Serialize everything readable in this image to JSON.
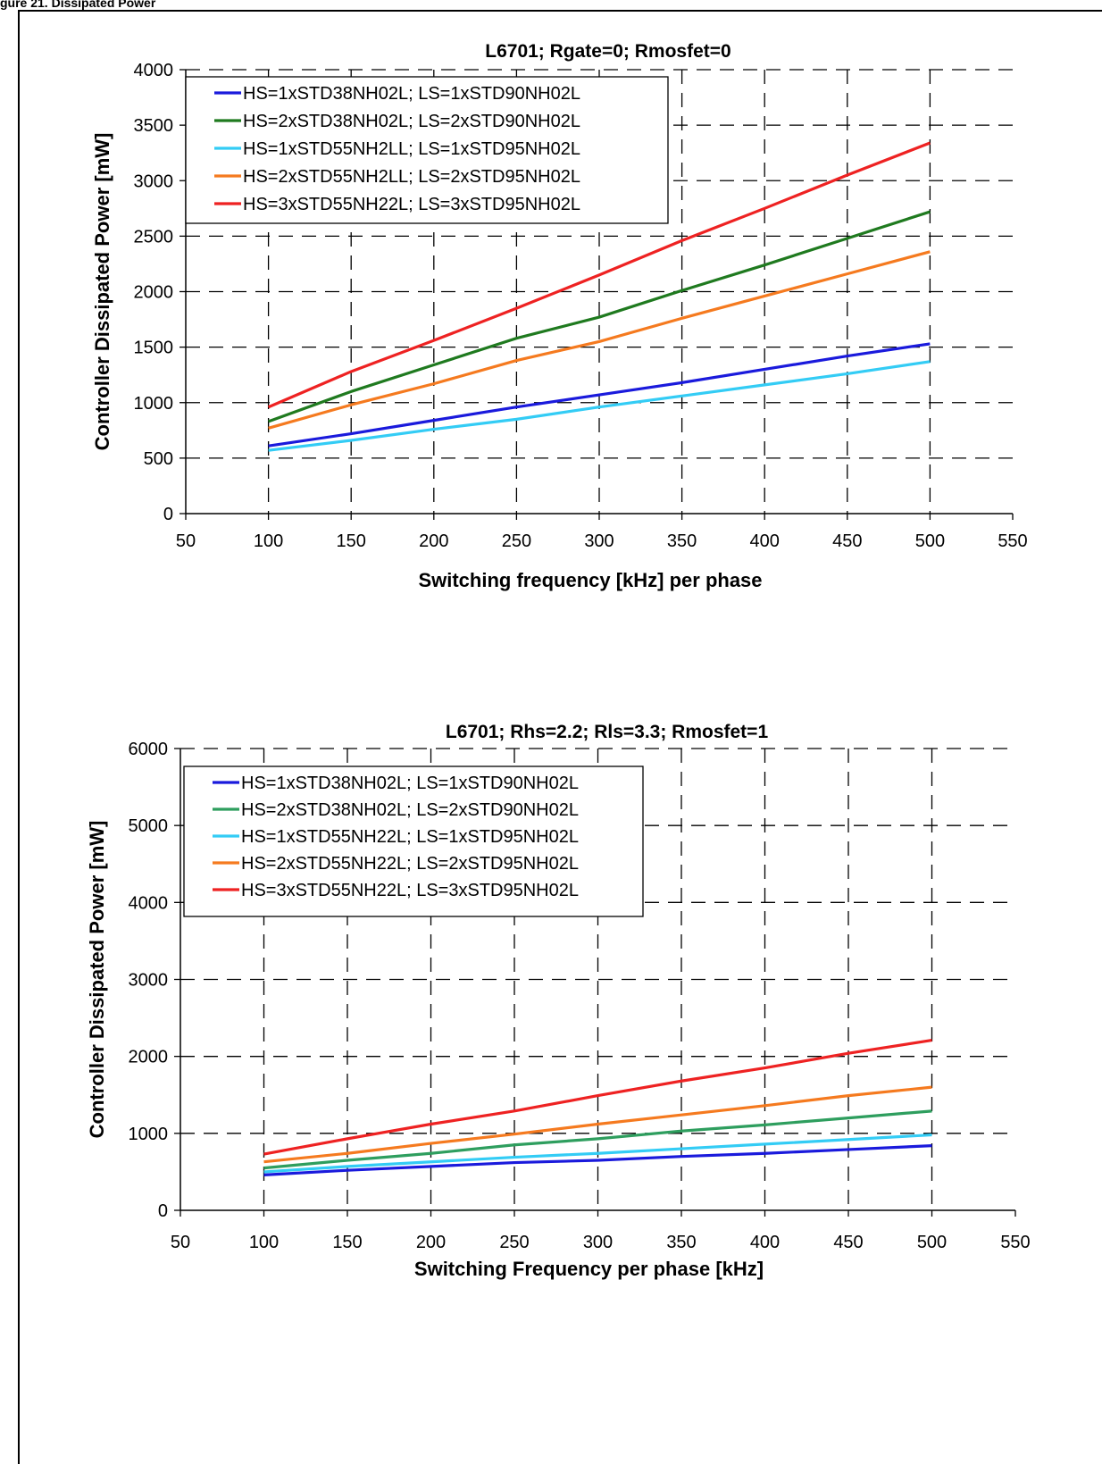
{
  "page": {
    "header_text": "gure 21.  Dissipated Power"
  },
  "chart_data": [
    {
      "type": "line",
      "title": "L6701; Rgate=0; Rmosfet=0",
      "xlabel": "Switching frequency [kHz] per phase",
      "ylabel": "Controller Dissipated Power [mW]",
      "xlim": [
        50,
        550
      ],
      "ylim": [
        0,
        4000
      ],
      "xticks": [
        "50",
        "100",
        "150",
        "200",
        "250",
        "300",
        "350",
        "400",
        "450",
        "500",
        "550"
      ],
      "yticks": [
        "0",
        "500",
        "1000",
        "1500",
        "2000",
        "2500",
        "3000",
        "3500",
        "4000"
      ],
      "grid": "dashed",
      "legend": "top-left",
      "x": [
        100,
        150,
        200,
        250,
        300,
        350,
        400,
        450,
        500
      ],
      "series": [
        {
          "name": "HS=1xSTD38NH02L; LS=1xSTD90NH02L",
          "color": "#1a1adc",
          "values": [
            610,
            720,
            840,
            960,
            1070,
            1180,
            1300,
            1420,
            1530
          ]
        },
        {
          "name": "HS=2xSTD38NH02L; LS=2xSTD90NH02L",
          "color": "#1f7a1f",
          "values": [
            830,
            1100,
            1340,
            1580,
            1770,
            2010,
            2240,
            2480,
            2720
          ]
        },
        {
          "name": "HS=1xSTD55NH2LL; LS=1xSTD95NH02L",
          "color": "#33ccf5",
          "values": [
            570,
            660,
            760,
            850,
            960,
            1060,
            1160,
            1260,
            1370
          ]
        },
        {
          "name": "HS=2xSTD55NH2LL; LS=2xSTD95NH02L",
          "color": "#f57a1f",
          "values": [
            770,
            980,
            1170,
            1380,
            1550,
            1760,
            1960,
            2160,
            2360
          ]
        },
        {
          "name": "HS=3xSTD55NH22L; LS=3xSTD95NH02L",
          "color": "#ee2222",
          "values": [
            960,
            1280,
            1560,
            1850,
            2150,
            2460,
            2750,
            3050,
            3340
          ]
        }
      ]
    },
    {
      "type": "line",
      "title": "L6701; Rhs=2.2; Rls=3.3; Rmosfet=1",
      "xlabel": "Switching Frequency per phase [kHz]",
      "ylabel": "Controller Dissipated Power [mW]",
      "xlim": [
        50,
        550
      ],
      "ylim": [
        0,
        6000
      ],
      "xticks": [
        "50",
        "100",
        "150",
        "200",
        "250",
        "300",
        "350",
        "400",
        "450",
        "500",
        "550"
      ],
      "yticks": [
        "0",
        "1000",
        "2000",
        "3000",
        "4000",
        "5000",
        "6000"
      ],
      "grid": "dashed",
      "legend": "top-left",
      "x": [
        100,
        150,
        200,
        250,
        300,
        350,
        400,
        450,
        500
      ],
      "series": [
        {
          "name": "HS=1xSTD38NH02L; LS=1xSTD90NH02L",
          "color": "#1a1adc",
          "values": [
            460,
            520,
            570,
            620,
            650,
            700,
            740,
            790,
            840
          ]
        },
        {
          "name": "HS=2xSTD38NH02L; LS=2xSTD90NH02L",
          "color": "#2e9e5e",
          "values": [
            550,
            650,
            740,
            850,
            930,
            1030,
            1110,
            1200,
            1290
          ]
        },
        {
          "name": "HS=1xSTD55NH22L; LS=1xSTD95NH02L",
          "color": "#33ccf5",
          "values": [
            500,
            570,
            630,
            690,
            740,
            800,
            860,
            920,
            980
          ]
        },
        {
          "name": "HS=2xSTD55NH22L; LS=2xSTD95NH02L",
          "color": "#f57a1f",
          "values": [
            630,
            740,
            870,
            990,
            1120,
            1240,
            1360,
            1490,
            1600
          ]
        },
        {
          "name": "HS=3xSTD55NH22L; LS=3xSTD95NH02L",
          "color": "#ee2222",
          "values": [
            730,
            930,
            1120,
            1290,
            1490,
            1680,
            1850,
            2040,
            2210
          ]
        }
      ]
    }
  ]
}
